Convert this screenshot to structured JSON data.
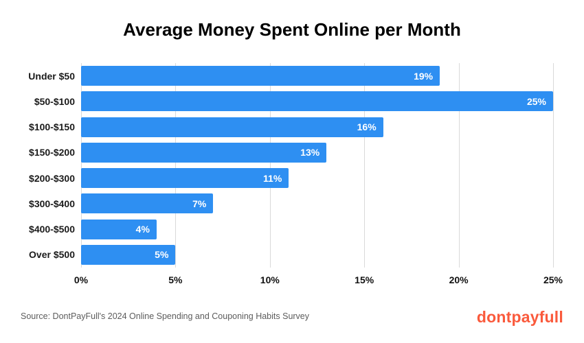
{
  "title": "Average Money Spent Online per Month",
  "source": "Source: DontPayFull's 2024 Online Spending and Couponing Habits Survey",
  "logo_text": "dontpayfull",
  "colors": {
    "bar": "#2e8ff2",
    "logo": "#fa5a3c",
    "grid": "#d9d9d9"
  },
  "chart_data": {
    "type": "bar",
    "orientation": "horizontal",
    "title": "Average Money Spent Online per Month",
    "categories": [
      "Under $50",
      "$50-$100",
      "$100-$150",
      "$150-$200",
      "$200-$300",
      "$300-$400",
      "$400-$500",
      "Over $500"
    ],
    "values": [
      19,
      25,
      16,
      13,
      11,
      7,
      4,
      5
    ],
    "value_labels": [
      "19%",
      "25%",
      "16%",
      "13%",
      "11%",
      "7%",
      "4%",
      "5%"
    ],
    "value_suffix": "%",
    "xlim": [
      0,
      25
    ],
    "xticks": [
      0,
      5,
      10,
      15,
      20,
      25
    ],
    "xtick_labels": [
      "0%",
      "5%",
      "10%",
      "15%",
      "20%",
      "25%"
    ],
    "grid": "vertical",
    "legend": "none"
  }
}
